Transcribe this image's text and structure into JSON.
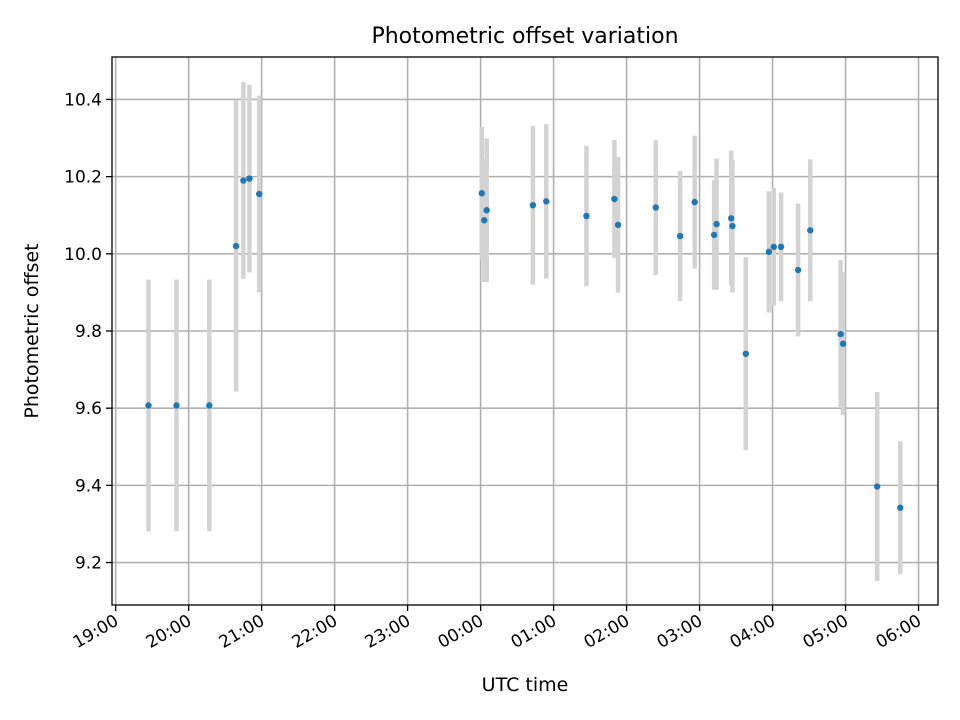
{
  "chart_data": {
    "type": "scatter",
    "title": "Photometric offset variation",
    "xlabel": "UTC time",
    "ylabel": "Photometric offset",
    "x_ticks": [
      "19:00",
      "20:00",
      "21:00",
      "22:00",
      "23:00",
      "00:00",
      "01:00",
      "02:00",
      "03:00",
      "04:00",
      "05:00",
      "06:00"
    ],
    "y_ticks": [
      "9.2",
      "9.4",
      "9.6",
      "9.8",
      "10.0",
      "10.2",
      "10.4"
    ],
    "xlim": [
      "18:57",
      "06:16"
    ],
    "ylim": [
      9.09,
      10.51
    ],
    "grid": true,
    "marker_color": "#1f77b4",
    "errorbar_color": "#d3d3d3",
    "points": [
      {
        "time": "19:27",
        "y": 9.607,
        "err": 0.326
      },
      {
        "time": "19:50",
        "y": 9.607,
        "err": 0.326
      },
      {
        "time": "20:17",
        "y": 9.607,
        "err": 0.326
      },
      {
        "time": "20:39",
        "y": 10.02,
        "err": 0.377
      },
      {
        "time": "20:45",
        "y": 10.19,
        "err": 0.255
      },
      {
        "time": "20:50",
        "y": 10.195,
        "err": 0.243
      },
      {
        "time": "20:58",
        "y": 10.155,
        "err": 0.255
      },
      {
        "time": "00:01",
        "y": 10.157,
        "err": 0.172
      },
      {
        "time": "00:03",
        "y": 10.087,
        "err": 0.16
      },
      {
        "time": "00:05",
        "y": 10.113,
        "err": 0.186
      },
      {
        "time": "00:43",
        "y": 10.126,
        "err": 0.206
      },
      {
        "time": "00:54",
        "y": 10.136,
        "err": 0.2
      },
      {
        "time": "01:27",
        "y": 10.098,
        "err": 0.182
      },
      {
        "time": "01:50",
        "y": 10.142,
        "err": 0.153
      },
      {
        "time": "01:53",
        "y": 10.075,
        "err": 0.176
      },
      {
        "time": "02:24",
        "y": 10.12,
        "err": 0.175
      },
      {
        "time": "02:44",
        "y": 10.046,
        "err": 0.169
      },
      {
        "time": "02:56",
        "y": 10.134,
        "err": 0.172
      },
      {
        "time": "03:12",
        "y": 10.049,
        "err": 0.142
      },
      {
        "time": "03:14",
        "y": 10.077,
        "err": 0.17
      },
      {
        "time": "03:26",
        "y": 10.092,
        "err": 0.175
      },
      {
        "time": "03:27",
        "y": 10.072,
        "err": 0.172
      },
      {
        "time": "03:38",
        "y": 9.741,
        "err": 0.25
      },
      {
        "time": "03:57",
        "y": 10.005,
        "err": 0.157
      },
      {
        "time": "04:01",
        "y": 10.018,
        "err": 0.153
      },
      {
        "time": "04:07",
        "y": 10.018,
        "err": 0.141
      },
      {
        "time": "04:21",
        "y": 9.958,
        "err": 0.172
      },
      {
        "time": "04:31",
        "y": 10.061,
        "err": 0.184
      },
      {
        "time": "04:56",
        "y": 9.792,
        "err": 0.192
      },
      {
        "time": "04:58",
        "y": 9.767,
        "err": 0.185
      },
      {
        "time": "05:26",
        "y": 9.397,
        "err": 0.245
      },
      {
        "time": "05:45",
        "y": 9.342,
        "err": 0.172
      }
    ]
  }
}
